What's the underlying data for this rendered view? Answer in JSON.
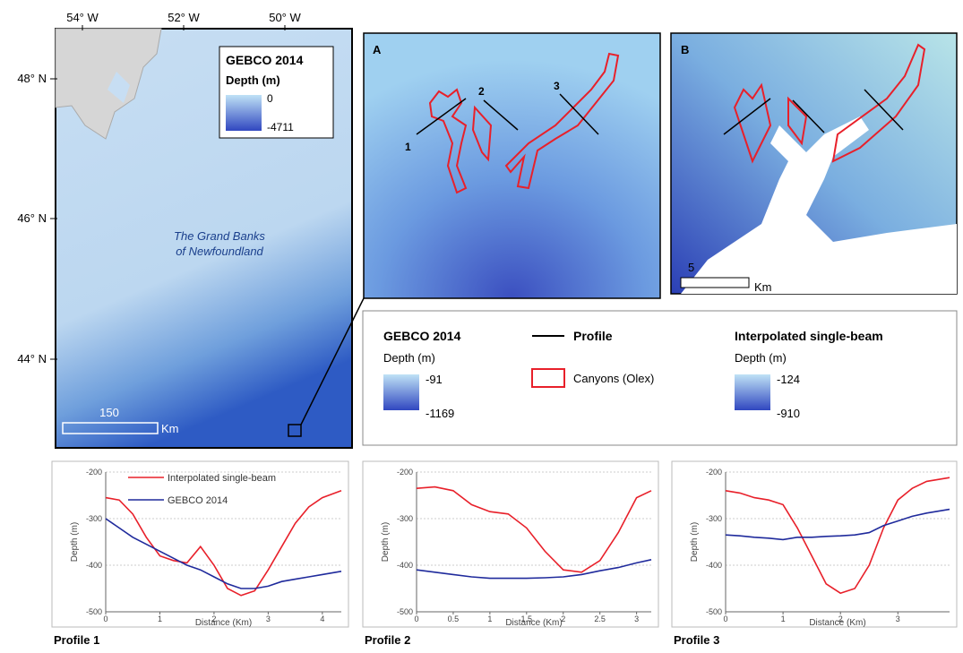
{
  "overview": {
    "lon_labels": [
      "54° W",
      "52° W",
      "50° W"
    ],
    "lat_labels": [
      "48° N",
      "46° N",
      "44° N"
    ],
    "legend_title": "GEBCO 2014",
    "legend_subtitle": "Depth (m)",
    "legend_max": 0,
    "legend_min": -4711,
    "region_label": [
      "The Grand Banks",
      "of Newfoundland"
    ],
    "scale_value": 150,
    "scale_unit": "Km"
  },
  "panel_a": {
    "label": "A",
    "profiles": [
      1,
      2,
      3
    ]
  },
  "panel_b": {
    "label": "B",
    "scale_value": 5,
    "scale_unit": "Km"
  },
  "legend": {
    "gebco_title": "GEBCO 2014",
    "gebco_subtitle": "Depth (m)",
    "gebco_max": -91,
    "gebco_min": -1169,
    "profile": "Profile",
    "canyons": "Canyons (Olex)",
    "interp_title": "Interpolated single-beam",
    "interp_subtitle": "Depth (m)",
    "interp_max": -124,
    "interp_min": -910
  },
  "chart_data": [
    {
      "type": "line",
      "title": "Profile 1",
      "xlabel": "Distance (Km)",
      "ylabel": "Depth (m)",
      "x": [
        0,
        0.25,
        0.5,
        0.75,
        1,
        1.25,
        1.5,
        1.75,
        2,
        2.25,
        2.5,
        2.75,
        3,
        3.25,
        3.5,
        3.75,
        4,
        4.35
      ],
      "xlim": [
        0,
        4.35
      ],
      "xticks": [
        0,
        1,
        2,
        3,
        4
      ],
      "ylim": [
        -500,
        -200
      ],
      "yticks": [
        -500,
        -400,
        -300,
        -200
      ],
      "grid": true,
      "series": [
        {
          "name": "Interpolated single-beam",
          "color": "#e8202a",
          "values": [
            -255,
            -260,
            -290,
            -340,
            -380,
            -390,
            -395,
            -360,
            -400,
            -450,
            -465,
            -455,
            -410,
            -360,
            -310,
            -275,
            -255,
            -240
          ]
        },
        {
          "name": "GEBCO 2014",
          "color": "#1f2a9c",
          "values": [
            -300,
            -320,
            -340,
            -355,
            -370,
            -385,
            -400,
            -410,
            -425,
            -440,
            -450,
            -450,
            -445,
            -435,
            -430,
            -425,
            -420,
            -413
          ]
        }
      ]
    },
    {
      "type": "line",
      "title": "Profile 2",
      "xlabel": "Distance (Km)",
      "ylabel": "Depth (m)",
      "x": [
        0,
        0.25,
        0.5,
        0.75,
        1,
        1.25,
        1.5,
        1.75,
        2,
        2.25,
        2.5,
        2.75,
        3,
        3.2
      ],
      "xlim": [
        0,
        3.2
      ],
      "xticks": [
        0,
        0.5,
        1,
        1.5,
        2,
        2.5,
        3
      ],
      "ylim": [
        -500,
        -200
      ],
      "yticks": [
        -500,
        -400,
        -300,
        -200
      ],
      "grid": true,
      "series": [
        {
          "color": "#e8202a",
          "values": [
            -235,
            -232,
            -240,
            -270,
            -285,
            -290,
            -320,
            -370,
            -410,
            -415,
            -390,
            -330,
            -255,
            -240
          ]
        },
        {
          "color": "#1f2a9c",
          "values": [
            -410,
            -415,
            -420,
            -425,
            -428,
            -428,
            -428,
            -427,
            -425,
            -420,
            -412,
            -405,
            -395,
            -388
          ]
        }
      ]
    },
    {
      "type": "line",
      "title": "Profile 3",
      "xlabel": "Distance (Km)",
      "ylabel": "Depth (m)",
      "x": [
        0,
        0.25,
        0.5,
        0.75,
        1,
        1.25,
        1.5,
        1.75,
        2,
        2.25,
        2.5,
        2.75,
        3,
        3.25,
        3.5,
        3.9
      ],
      "xlim": [
        0,
        3.9
      ],
      "xticks": [
        0,
        1,
        2,
        3
      ],
      "ylim": [
        -500,
        -200
      ],
      "yticks": [
        -500,
        -400,
        -300,
        -200
      ],
      "grid": true,
      "series": [
        {
          "color": "#e8202a",
          "values": [
            -240,
            -245,
            -255,
            -260,
            -270,
            -320,
            -380,
            -440,
            -460,
            -450,
            -400,
            -320,
            -260,
            -235,
            -220,
            -212
          ]
        },
        {
          "color": "#1f2a9c",
          "values": [
            -335,
            -337,
            -340,
            -342,
            -345,
            -340,
            -340,
            -338,
            -337,
            -335,
            -330,
            -315,
            -305,
            -295,
            -288,
            -280
          ]
        }
      ]
    }
  ]
}
